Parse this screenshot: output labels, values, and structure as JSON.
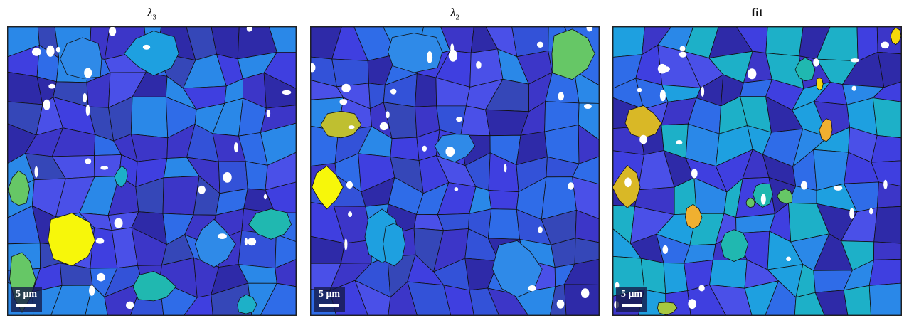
{
  "panels": [
    {
      "title_base": "λ",
      "title_sub": "3",
      "scalebar_label": "5 μm",
      "cell_palette": [
        "#3c36c8",
        "#3f3fe0",
        "#3547b8",
        "#2f6ce8",
        "#4a50e8",
        "#2e2aa8",
        "#3352d8",
        "#2a88e8"
      ],
      "grains": [
        {
          "name": "light-blue-grain",
          "color": "#2f8ae8"
        },
        {
          "name": "sky-grain",
          "color": "#1ea0e0"
        },
        {
          "name": "cyan-grain",
          "color": "#1db0c8"
        },
        {
          "name": "teal-grain",
          "color": "#20b8b0"
        },
        {
          "name": "green-grain",
          "color": "#66c766"
        },
        {
          "name": "yellow-grain",
          "color": "#f7f70a"
        }
      ]
    },
    {
      "title_base": "λ",
      "title_sub": "2",
      "scalebar_label": "5 μm",
      "cell_palette": [
        "#3c36c8",
        "#3f3fe0",
        "#3547b8",
        "#2f6ce8",
        "#4a50e8",
        "#2e2aa8",
        "#3352d8",
        "#2a88e8"
      ],
      "grains": [
        {
          "name": "light-blue-grain",
          "color": "#2f8ae8"
        },
        {
          "name": "sky-grain",
          "color": "#1ea0e0"
        },
        {
          "name": "olive-grain",
          "color": "#bfbf30"
        },
        {
          "name": "green-grain",
          "color": "#66c766"
        },
        {
          "name": "yellow-grain",
          "color": "#f7f70a"
        }
      ]
    },
    {
      "title_text": "fit",
      "scalebar_label": "5 μm",
      "cell_palette": [
        "#3c36c8",
        "#3f3fe0",
        "#2f6ce8",
        "#1ea0e0",
        "#4a50e8",
        "#2e2aa8",
        "#1db0c8",
        "#2a88e8"
      ],
      "grains": [
        {
          "name": "gold-grain",
          "color": "#d9b826"
        },
        {
          "name": "orange-grain",
          "color": "#f0b030"
        },
        {
          "name": "teal-grain",
          "color": "#20b8b0"
        },
        {
          "name": "green-grain",
          "color": "#66c766"
        },
        {
          "name": "olive-grain",
          "color": "#a8c840"
        },
        {
          "name": "yellow-grain",
          "color": "#f7d80a"
        }
      ]
    }
  ]
}
